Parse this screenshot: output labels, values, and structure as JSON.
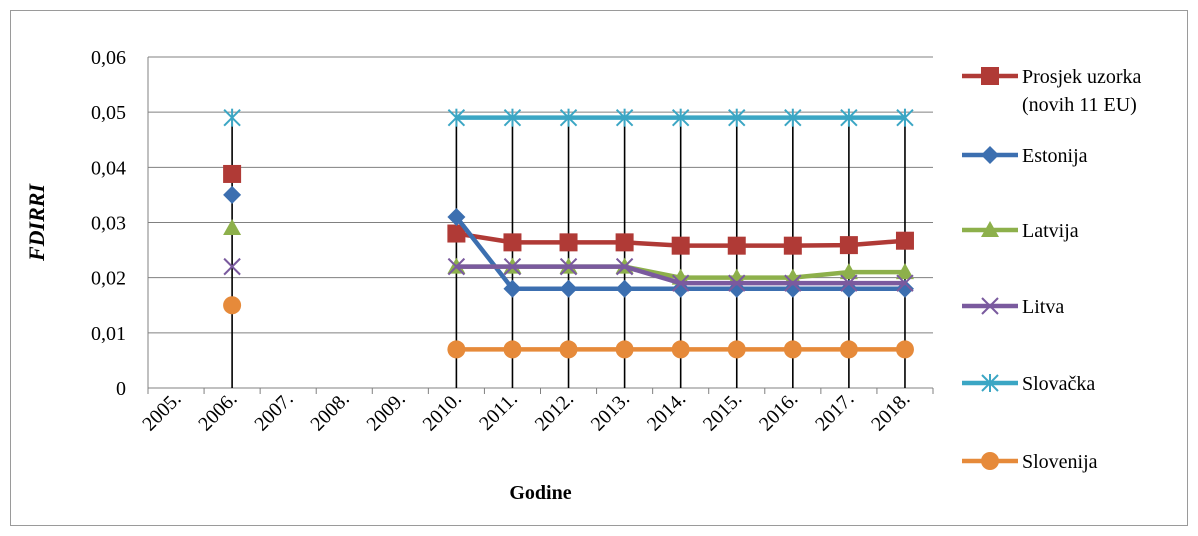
{
  "chart_data": {
    "type": "line",
    "title": "",
    "xlabel": "Godine",
    "ylabel": "FDIRRI",
    "ylim": [
      0,
      0.06
    ],
    "yticks": [
      "0",
      "0,01",
      "0,02",
      "0,03",
      "0,04",
      "0,05",
      "0,06"
    ],
    "ytick_values": [
      0,
      0.01,
      0.02,
      0.03,
      0.04,
      0.05,
      0.06
    ],
    "categories": [
      "2005.",
      "2006.",
      "2007.",
      "2008.",
      "2009.",
      "2010.",
      "2011.",
      "2012.",
      "2013.",
      "2014.",
      "2015.",
      "2016.",
      "2017.",
      "2018."
    ],
    "grid": "horizontal",
    "legend_position": "right",
    "series": [
      {
        "name": "Prosjek uzorka (novih 11 EU)",
        "legend_lines": [
          "Prosjek uzorka",
          "(novih 11 EU)"
        ],
        "color": "#b03a36",
        "marker": "square",
        "values": [
          null,
          0.0388,
          null,
          null,
          null,
          0.028,
          0.0264,
          0.0264,
          0.0264,
          0.0258,
          0.0258,
          0.0258,
          0.0259,
          0.0267
        ]
      },
      {
        "name": "Estonija",
        "legend_lines": [
          "Estonija"
        ],
        "color": "#3c6fb0",
        "marker": "diamond",
        "values": [
          null,
          0.035,
          null,
          null,
          null,
          0.031,
          0.018,
          0.018,
          0.018,
          0.018,
          0.018,
          0.018,
          0.018,
          0.018
        ]
      },
      {
        "name": "Latvija",
        "legend_lines": [
          "Latvija"
        ],
        "color": "#8db04b",
        "marker": "triangle",
        "values": [
          null,
          0.029,
          null,
          null,
          null,
          0.022,
          0.022,
          0.022,
          0.022,
          0.02,
          0.02,
          0.02,
          0.021,
          0.021
        ]
      },
      {
        "name": "Litva",
        "legend_lines": [
          "Litva"
        ],
        "color": "#7a5a9e",
        "marker": "x",
        "values": [
          null,
          0.022,
          null,
          null,
          null,
          0.022,
          0.022,
          0.022,
          0.022,
          0.019,
          0.019,
          0.019,
          0.019,
          0.019
        ]
      },
      {
        "name": "Slovačka",
        "legend_lines": [
          "Slovačka"
        ],
        "color": "#3ba6c4",
        "marker": "star",
        "values": [
          null,
          0.049,
          null,
          null,
          null,
          0.049,
          0.049,
          0.049,
          0.049,
          0.049,
          0.049,
          0.049,
          0.049,
          0.049
        ]
      },
      {
        "name": "Slovenija",
        "legend_lines": [
          "Slovenija"
        ],
        "color": "#e68a3a",
        "marker": "circle",
        "values": [
          null,
          0.015,
          null,
          null,
          null,
          0.007,
          0.007,
          0.007,
          0.007,
          0.007,
          0.007,
          0.007,
          0.007,
          0.007
        ]
      }
    ]
  }
}
